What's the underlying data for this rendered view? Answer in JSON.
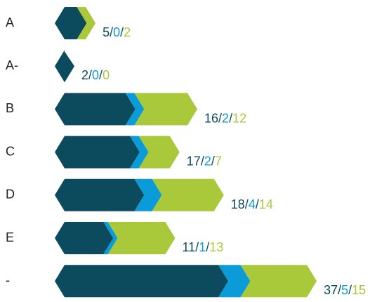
{
  "chart_data": {
    "type": "stacked-chevron-bar",
    "categories": [
      "A",
      "A-",
      "B",
      "C",
      "D",
      "E",
      "-"
    ],
    "separator": "/",
    "series": [
      {
        "color": "#0c4a5d",
        "values": [
          5,
          2,
          16,
          17,
          18,
          11,
          37
        ]
      },
      {
        "color": "#0b9bd9",
        "values": [
          0,
          0,
          2,
          2,
          4,
          1,
          5
        ]
      },
      {
        "color": "#a9c83a",
        "values": [
          2,
          0,
          12,
          7,
          14,
          13,
          15
        ]
      }
    ]
  }
}
